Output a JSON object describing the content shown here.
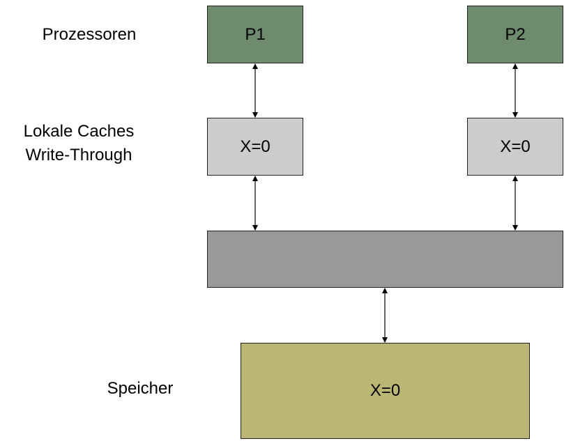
{
  "labels": {
    "processors": "Prozessoren",
    "caches_line1": "Lokale Caches",
    "caches_line2": "Write-Through",
    "memory": "Speicher"
  },
  "processors": [
    {
      "name": "P1"
    },
    {
      "name": "P2"
    }
  ],
  "caches": [
    {
      "value": "X=0"
    },
    {
      "value": "X=0"
    }
  ],
  "memory": {
    "value": "X=0"
  },
  "colors": {
    "processor": "#6e8b6e",
    "cache": "#cccccc",
    "bus": "#999999",
    "memory": "#bbb673"
  }
}
